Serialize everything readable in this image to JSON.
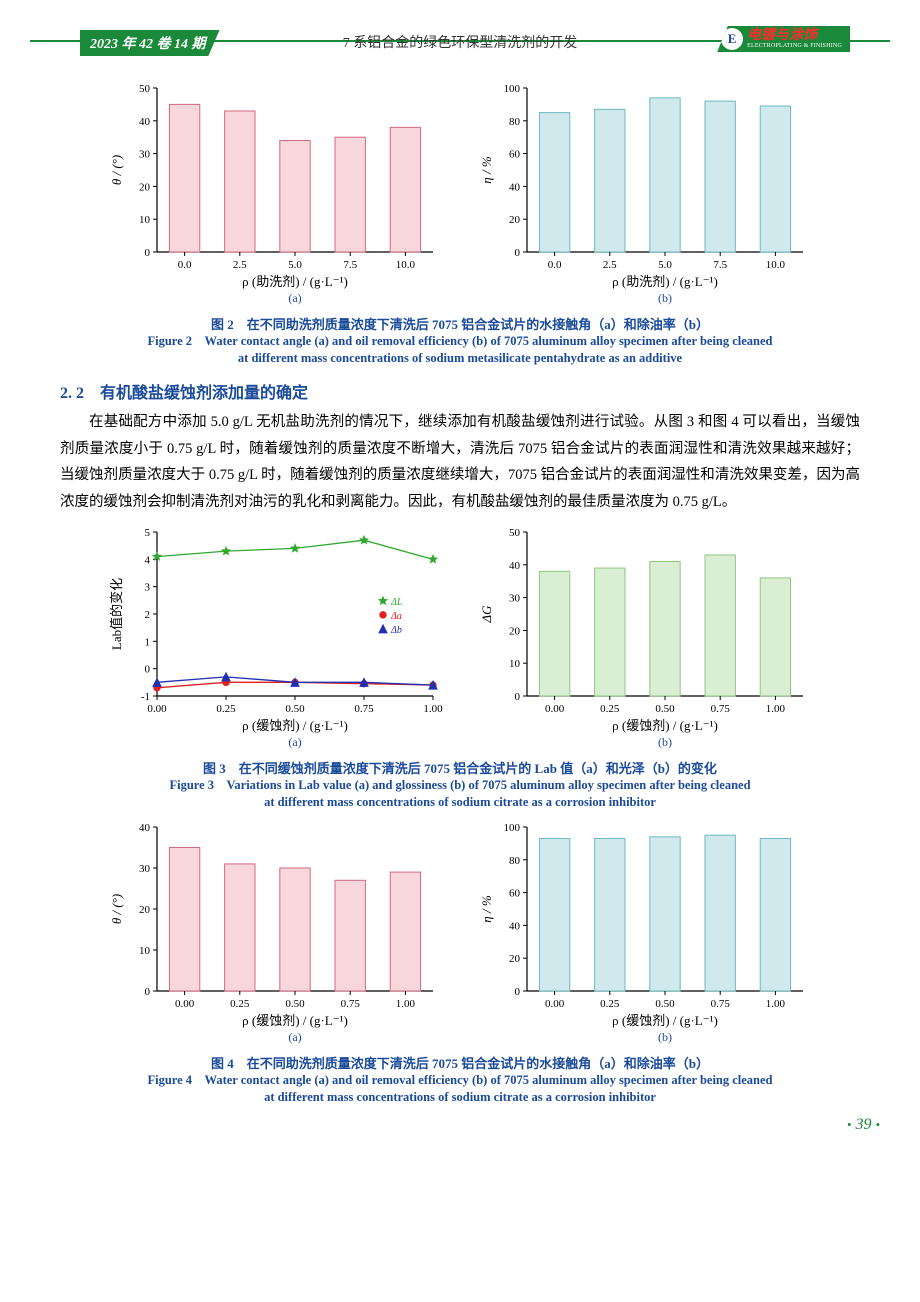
{
  "header": {
    "left": "2023 年 42 卷 14 期",
    "center": "7 系铝合金的绿色环保型清洗剂的开发",
    "logo_letter": "E",
    "logo_cn": "电镀与涂饰",
    "logo_en": "ELECTROPLATING & FINISHING"
  },
  "colors": {
    "pink_fill": "#f7d6dc",
    "pink_stroke": "#d46a7e",
    "cyan_fill": "#cfe9ec",
    "cyan_stroke": "#6fb8c2",
    "green_fill": "#d9eed3",
    "green_stroke": "#8fc780",
    "axis": "#000000",
    "caption": "#1a4a9a",
    "legend_green": "#2fa82f",
    "legend_red": "#e02020",
    "legend_blue": "#2030b0"
  },
  "fig2": {
    "a": {
      "type": "bar",
      "ylabel": "θ / (°)",
      "xlabel": "ρ (助洗剂) / (g·L⁻¹)",
      "sub": "(a)",
      "categories": [
        "0.0",
        "2.5",
        "5.0",
        "7.5",
        "10.0"
      ],
      "values": [
        45,
        43,
        34,
        35,
        38
      ],
      "ylim": [
        0,
        50
      ],
      "yticks": [
        0,
        10,
        20,
        30,
        40,
        50
      ],
      "bar_fill": "#f7d6dc",
      "bar_stroke": "#d46a7e",
      "bar_width": 0.55
    },
    "b": {
      "type": "bar",
      "ylabel": "η / %",
      "xlabel": "ρ (助洗剂) / (g·L⁻¹)",
      "sub": "(b)",
      "categories": [
        "0.0",
        "2.5",
        "5.0",
        "7.5",
        "10.0"
      ],
      "values": [
        85,
        87,
        94,
        92,
        89
      ],
      "ylim": [
        0,
        100
      ],
      "yticks": [
        0,
        20,
        40,
        60,
        80,
        100
      ],
      "bar_fill": "#cfe9ec",
      "bar_stroke": "#6fb8c2",
      "bar_width": 0.55
    },
    "cap_cn": "图 2　在不同助洗剂质量浓度下清洗后 7075 铝合金试片的水接触角（a）和除油率（b）",
    "cap_en1": "Figure 2　Water contact angle (a) and oil removal efficiency (b) of 7075 aluminum alloy specimen after being cleaned",
    "cap_en2": "at different mass concentrations of sodium metasilicate pentahydrate as an additive"
  },
  "section22": {
    "num": "2. 2",
    "title": "有机酸盐缓蚀剂添加量的确定"
  },
  "para22": "在基础配方中添加 5.0 g/L 无机盐助洗剂的情况下，继续添加有机酸盐缓蚀剂进行试验。从图 3 和图 4 可以看出，当缓蚀剂质量浓度小于 0.75 g/L 时，随着缓蚀剂的质量浓度不断增大，清洗后 7075 铝合金试片的表面润湿性和清洗效果越来越好；当缓蚀剂质量浓度大于 0.75 g/L 时，随着缓蚀剂的质量浓度继续增大，7075 铝合金试片的表面润湿性和清洗效果变差，因为高浓度的缓蚀剂会抑制清洗剂对油污的乳化和剥离能力。因此，有机酸盐缓蚀剂的最佳质量浓度为 0.75 g/L。",
  "fig3": {
    "a": {
      "type": "scatter-line",
      "ylabel": "Lab值的变化",
      "xlabel": "ρ (缓蚀剂) / (g·L⁻¹)",
      "sub": "(a)",
      "x": [
        0.0,
        0.25,
        0.5,
        0.75,
        1.0
      ],
      "series": [
        {
          "name": "ΔL",
          "marker": "star",
          "color": "#2fa82f",
          "y": [
            4.1,
            4.3,
            4.4,
            4.7,
            4.0
          ]
        },
        {
          "name": "Δa",
          "marker": "circle",
          "color": "#e02020",
          "y": [
            -0.7,
            -0.5,
            -0.5,
            -0.55,
            -0.6
          ]
        },
        {
          "name": "Δb",
          "marker": "triangle",
          "color": "#2030b0",
          "y": [
            -0.5,
            -0.3,
            -0.5,
            -0.5,
            -0.6
          ]
        }
      ],
      "ylim": [
        -1,
        5
      ],
      "yticks": [
        -1,
        0,
        1,
        2,
        3,
        4,
        5
      ],
      "xticks": [
        "0.00",
        "0.25",
        "0.50",
        "0.75",
        "1.00"
      ],
      "legend_pos": "right-mid"
    },
    "b": {
      "type": "bar",
      "ylabel": "ΔG",
      "xlabel": "ρ (缓蚀剂) / (g·L⁻¹)",
      "sub": "(b)",
      "categories": [
        "0.00",
        "0.25",
        "0.50",
        "0.75",
        "1.00"
      ],
      "values": [
        38,
        39,
        41,
        43,
        36
      ],
      "ylim": [
        0,
        50
      ],
      "yticks": [
        0,
        10,
        20,
        30,
        40,
        50
      ],
      "bar_fill": "#d9eed3",
      "bar_stroke": "#8fc780",
      "bar_width": 0.55
    },
    "cap_cn": "图 3　在不同缓蚀剂质量浓度下清洗后 7075 铝合金试片的 Lab 值（a）和光泽（b）的变化",
    "cap_en1": "Figure 3　Variations in Lab value (a) and glossiness (b) of 7075 aluminum alloy specimen after being cleaned",
    "cap_en2": "at different mass concentrations of sodium citrate as a corrosion inhibitor"
  },
  "fig4": {
    "a": {
      "type": "bar",
      "ylabel": "θ / (°)",
      "xlabel": "ρ (缓蚀剂) / (g·L⁻¹)",
      "sub": "(a)",
      "categories": [
        "0.00",
        "0.25",
        "0.50",
        "0.75",
        "1.00"
      ],
      "values": [
        35,
        31,
        30,
        27,
        29
      ],
      "ylim": [
        0,
        40
      ],
      "yticks": [
        0,
        10,
        20,
        30,
        40
      ],
      "bar_fill": "#f7d6dc",
      "bar_stroke": "#d46a7e",
      "bar_width": 0.55
    },
    "b": {
      "type": "bar",
      "ylabel": "η / %",
      "xlabel": "ρ (缓蚀剂) / (g·L⁻¹)",
      "sub": "(b)",
      "categories": [
        "0.00",
        "0.25",
        "0.50",
        "0.75",
        "1.00"
      ],
      "values": [
        93,
        93,
        94,
        95,
        93
      ],
      "ylim": [
        0,
        100
      ],
      "yticks": [
        0,
        20,
        40,
        60,
        80,
        100
      ],
      "bar_fill": "#cfe9ec",
      "bar_stroke": "#6fb8c2",
      "bar_width": 0.55
    },
    "cap_cn": "图 4　在不同助洗剂质量浓度下清洗后 7075 铝合金试片的水接触角（a）和除油率（b）",
    "cap_en1": "Figure 4　Water contact angle (a) and oil removal efficiency (b) of 7075 aluminum alloy specimen after being cleaned",
    "cap_en2": "at different mass concentrations of sodium citrate as a corrosion inhibitor"
  },
  "pagenum": "39"
}
